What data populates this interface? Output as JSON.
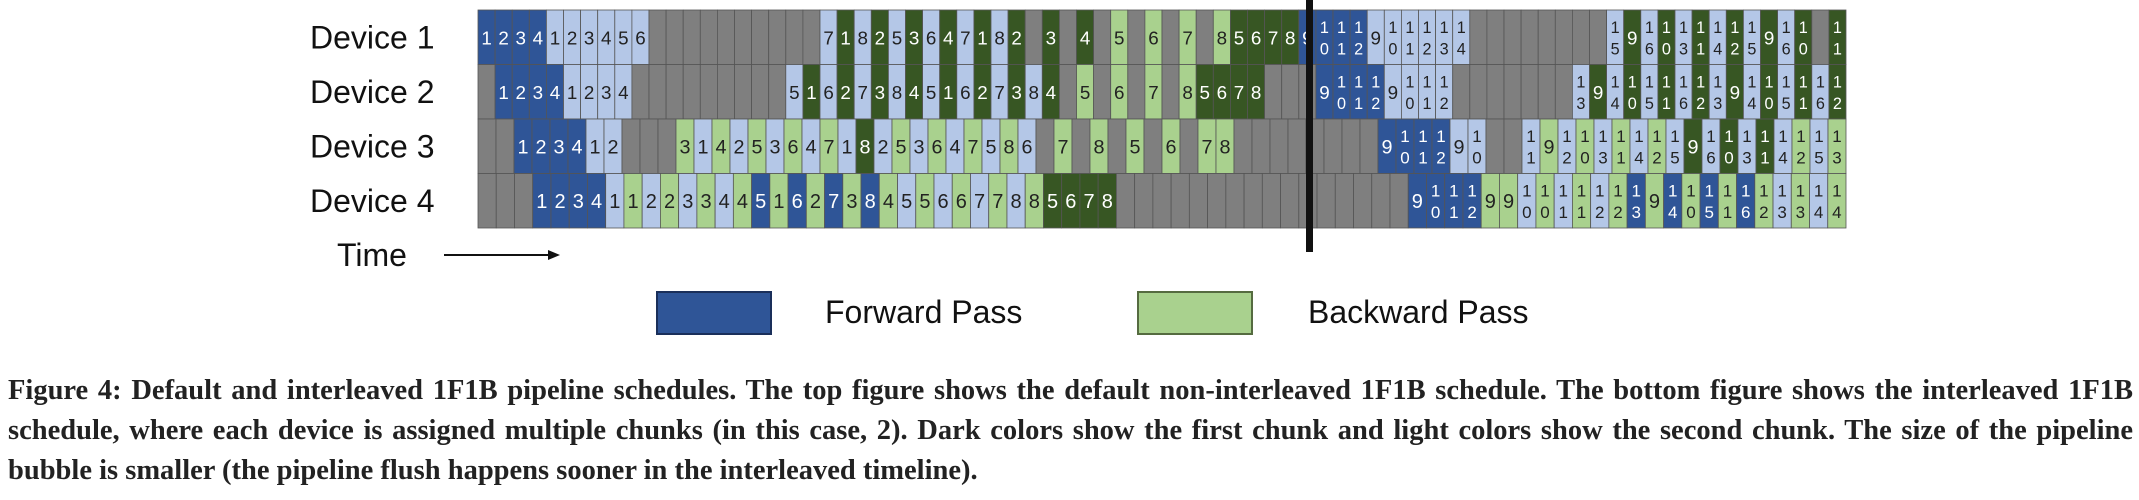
{
  "rows": [
    {
      "label": "Device 1",
      "cells": [
        [
          "fd",
          "1"
        ],
        [
          "fd",
          "2"
        ],
        [
          "fd",
          "3"
        ],
        [
          "fd",
          "4"
        ],
        [
          "fl",
          "1"
        ],
        [
          "fl",
          "2"
        ],
        [
          "fl",
          "3"
        ],
        [
          "fl",
          "4"
        ],
        [
          "fl",
          "5"
        ],
        [
          "fl",
          "6"
        ],
        [
          "g",
          ""
        ],
        [
          "g",
          ""
        ],
        [
          "g",
          ""
        ],
        [
          "g",
          ""
        ],
        [
          "g",
          ""
        ],
        [
          "g",
          ""
        ],
        [
          "g",
          ""
        ],
        [
          "g",
          ""
        ],
        [
          "g",
          ""
        ],
        [
          "g",
          ""
        ],
        [
          "fl",
          "7"
        ],
        [
          "bd",
          "1"
        ],
        [
          "fl",
          "8"
        ],
        [
          "bd",
          "2"
        ],
        [
          "fl",
          "5"
        ],
        [
          "bd",
          "3"
        ],
        [
          "fl",
          "6"
        ],
        [
          "bd",
          "4"
        ],
        [
          "fl",
          "7"
        ],
        [
          "bd",
          "1"
        ],
        [
          "fl",
          "8"
        ],
        [
          "bd",
          "2"
        ],
        [
          "g",
          ""
        ],
        [
          "bd",
          "3"
        ],
        [
          "g",
          ""
        ],
        [
          "bd",
          "4"
        ],
        [
          "g",
          ""
        ],
        [
          "bl",
          "5"
        ],
        [
          "g",
          ""
        ],
        [
          "bl",
          "6"
        ],
        [
          "g",
          ""
        ],
        [
          "bl",
          "7"
        ],
        [
          "g",
          ""
        ],
        [
          "bl",
          "8"
        ],
        [
          "bd",
          "5"
        ],
        [
          "bd",
          "6"
        ],
        [
          "bd",
          "7"
        ],
        [
          "bd",
          "8"
        ],
        [
          "fd",
          "9"
        ],
        [
          "fd",
          "10"
        ],
        [
          "fd",
          "11"
        ],
        [
          "fd",
          "12"
        ],
        [
          "fl",
          "9"
        ],
        [
          "fl",
          "10"
        ],
        [
          "fl",
          "11"
        ],
        [
          "fl",
          "12"
        ],
        [
          "fl",
          "13"
        ],
        [
          "fl",
          "14"
        ],
        [
          "g",
          ""
        ],
        [
          "g",
          ""
        ],
        [
          "g",
          ""
        ],
        [
          "g",
          ""
        ],
        [
          "g",
          ""
        ],
        [
          "g",
          ""
        ],
        [
          "g",
          ""
        ],
        [
          "g",
          ""
        ],
        [
          "fl",
          "15"
        ],
        [
          "bd",
          "9"
        ],
        [
          "fl",
          "16"
        ],
        [
          "bd",
          "10"
        ],
        [
          "fl",
          "13"
        ],
        [
          "bd",
          "11"
        ],
        [
          "fl",
          "14"
        ],
        [
          "bd",
          "12"
        ],
        [
          "fl",
          "15"
        ],
        [
          "bd",
          "9"
        ],
        [
          "fl",
          "16"
        ],
        [
          "bd",
          "10"
        ],
        [
          "g",
          ""
        ],
        [
          "bd",
          "11"
        ]
      ]
    },
    {
      "label": "Device 2",
      "cells": [
        [
          "g",
          ""
        ],
        [
          "fd",
          "1"
        ],
        [
          "fd",
          "2"
        ],
        [
          "fd",
          "3"
        ],
        [
          "fd",
          "4"
        ],
        [
          "fl",
          "1"
        ],
        [
          "fl",
          "2"
        ],
        [
          "fl",
          "3"
        ],
        [
          "fl",
          "4"
        ],
        [
          "g",
          ""
        ],
        [
          "g",
          ""
        ],
        [
          "g",
          ""
        ],
        [
          "g",
          ""
        ],
        [
          "g",
          ""
        ],
        [
          "g",
          ""
        ],
        [
          "g",
          ""
        ],
        [
          "g",
          ""
        ],
        [
          "g",
          ""
        ],
        [
          "fl",
          "5"
        ],
        [
          "bd",
          "1"
        ],
        [
          "fl",
          "6"
        ],
        [
          "bd",
          "2"
        ],
        [
          "fl",
          "7"
        ],
        [
          "bd",
          "3"
        ],
        [
          "fl",
          "8"
        ],
        [
          "bd",
          "4"
        ],
        [
          "fl",
          "5"
        ],
        [
          "bd",
          "1"
        ],
        [
          "fl",
          "6"
        ],
        [
          "bd",
          "2"
        ],
        [
          "fl",
          "7"
        ],
        [
          "bd",
          "3"
        ],
        [
          "fl",
          "8"
        ],
        [
          "bd",
          "4"
        ],
        [
          "g",
          ""
        ],
        [
          "bl",
          "5"
        ],
        [
          "g",
          ""
        ],
        [
          "bl",
          "6"
        ],
        [
          "g",
          ""
        ],
        [
          "bl",
          "7"
        ],
        [
          "g",
          ""
        ],
        [
          "bl",
          "8"
        ],
        [
          "bd",
          "5"
        ],
        [
          "bd",
          "6"
        ],
        [
          "bd",
          "7"
        ],
        [
          "bd",
          "8"
        ],
        [
          "g",
          ""
        ],
        [
          "g",
          ""
        ],
        [
          "g",
          ""
        ],
        [
          "fd",
          "9"
        ],
        [
          "fd",
          "10"
        ],
        [
          "fd",
          "11"
        ],
        [
          "fd",
          "12"
        ],
        [
          "fl",
          "9"
        ],
        [
          "fl",
          "10"
        ],
        [
          "fl",
          "11"
        ],
        [
          "fl",
          "12"
        ],
        [
          "g",
          ""
        ],
        [
          "g",
          ""
        ],
        [
          "g",
          ""
        ],
        [
          "g",
          ""
        ],
        [
          "g",
          ""
        ],
        [
          "g",
          ""
        ],
        [
          "g",
          ""
        ],
        [
          "fl",
          "13"
        ],
        [
          "bd",
          "9"
        ],
        [
          "fl",
          "14"
        ],
        [
          "bd",
          "10"
        ],
        [
          "fl",
          "15"
        ],
        [
          "bd",
          "11"
        ],
        [
          "fl",
          "16"
        ],
        [
          "bd",
          "12"
        ],
        [
          "fl",
          "13"
        ],
        [
          "bd",
          "9"
        ],
        [
          "fl",
          "14"
        ],
        [
          "bd",
          "10"
        ],
        [
          "fl",
          "15"
        ],
        [
          "bd",
          "11"
        ],
        [
          "fl",
          "16"
        ],
        [
          "bd",
          "12"
        ]
      ]
    },
    {
      "label": "Device 3",
      "cells": [
        [
          "g",
          ""
        ],
        [
          "g",
          ""
        ],
        [
          "fd",
          "1"
        ],
        [
          "fd",
          "2"
        ],
        [
          "fd",
          "3"
        ],
        [
          "fd",
          "4"
        ],
        [
          "fl",
          "1"
        ],
        [
          "fl",
          "2"
        ],
        [
          "g",
          ""
        ],
        [
          "g",
          ""
        ],
        [
          "g",
          ""
        ],
        [
          "bl",
          "3"
        ],
        [
          "fl",
          "1"
        ],
        [
          "bl",
          "4"
        ],
        [
          "fl",
          "2"
        ],
        [
          "bl",
          "5"
        ],
        [
          "fl",
          "3"
        ],
        [
          "bl",
          "6"
        ],
        [
          "fl",
          "4"
        ],
        [
          "bl",
          "7"
        ],
        [
          "fl",
          "1"
        ],
        [
          "bd",
          "8"
        ],
        [
          "fl",
          "2"
        ],
        [
          "bl",
          "5"
        ],
        [
          "fl",
          "3"
        ],
        [
          "bl",
          "6"
        ],
        [
          "fl",
          "4"
        ],
        [
          "bl",
          "7"
        ],
        [
          "fl",
          "5"
        ],
        [
          "bl",
          "8"
        ],
        [
          "fl",
          "6"
        ],
        [
          "g",
          ""
        ],
        [
          "bl",
          "7"
        ],
        [
          "g",
          ""
        ],
        [
          "bl",
          "8"
        ],
        [
          "g",
          ""
        ],
        [
          "bl",
          "5"
        ],
        [
          "g",
          ""
        ],
        [
          "bl",
          "6"
        ],
        [
          "g",
          ""
        ],
        [
          "bl",
          "7"
        ],
        [
          "bl",
          "8"
        ],
        [
          "g",
          ""
        ],
        [
          "g",
          ""
        ],
        [
          "g",
          ""
        ],
        [
          "g",
          ""
        ],
        [
          "g",
          ""
        ],
        [
          "g",
          ""
        ],
        [
          "g",
          ""
        ],
        [
          "g",
          ""
        ],
        [
          "fd",
          "9"
        ],
        [
          "fd",
          "10"
        ],
        [
          "fd",
          "11"
        ],
        [
          "fd",
          "12"
        ],
        [
          "fl",
          "9"
        ],
        [
          "fl",
          "10"
        ],
        [
          "g",
          ""
        ],
        [
          "g",
          ""
        ],
        [
          "fl",
          "11"
        ],
        [
          "bl",
          "9"
        ],
        [
          "fl",
          "12"
        ],
        [
          "bl",
          "10"
        ],
        [
          "fl",
          "13"
        ],
        [
          "bl",
          "11"
        ],
        [
          "fl",
          "14"
        ],
        [
          "bl",
          "12"
        ],
        [
          "fl",
          "15"
        ],
        [
          "bd",
          "9"
        ],
        [
          "fl",
          "16"
        ],
        [
          "bd",
          "10"
        ],
        [
          "fl",
          "13"
        ],
        [
          "bd",
          "11"
        ],
        [
          "fl",
          "14"
        ],
        [
          "bl",
          "12"
        ],
        [
          "fl",
          "15"
        ],
        [
          "bl",
          "13"
        ]
      ]
    },
    {
      "label": "Device 4",
      "cells": [
        [
          "g",
          ""
        ],
        [
          "g",
          ""
        ],
        [
          "g",
          ""
        ],
        [
          "fd",
          "1"
        ],
        [
          "fd",
          "2"
        ],
        [
          "fd",
          "3"
        ],
        [
          "fd",
          "4"
        ],
        [
          "fl",
          "1"
        ],
        [
          "bl",
          "1"
        ],
        [
          "fl",
          "2"
        ],
        [
          "bl",
          "2"
        ],
        [
          "fl",
          "3"
        ],
        [
          "bl",
          "3"
        ],
        [
          "fl",
          "4"
        ],
        [
          "bl",
          "4"
        ],
        [
          "fd",
          "5"
        ],
        [
          "bl",
          "1"
        ],
        [
          "fd",
          "6"
        ],
        [
          "bl",
          "2"
        ],
        [
          "fd",
          "7"
        ],
        [
          "bl",
          "3"
        ],
        [
          "fd",
          "8"
        ],
        [
          "bl",
          "4"
        ],
        [
          "fl",
          "5"
        ],
        [
          "bl",
          "5"
        ],
        [
          "fl",
          "6"
        ],
        [
          "bl",
          "6"
        ],
        [
          "fl",
          "7"
        ],
        [
          "bl",
          "7"
        ],
        [
          "fl",
          "8"
        ],
        [
          "bl",
          "8"
        ],
        [
          "bd",
          "5"
        ],
        [
          "bd",
          "6"
        ],
        [
          "bd",
          "7"
        ],
        [
          "bd",
          "8"
        ],
        [
          "g",
          ""
        ],
        [
          "g",
          ""
        ],
        [
          "g",
          ""
        ],
        [
          "g",
          ""
        ],
        [
          "g",
          ""
        ],
        [
          "g",
          ""
        ],
        [
          "g",
          ""
        ],
        [
          "g",
          ""
        ],
        [
          "g",
          ""
        ],
        [
          "g",
          ""
        ],
        [
          "g",
          ""
        ],
        [
          "g",
          ""
        ],
        [
          "g",
          ""
        ],
        [
          "g",
          ""
        ],
        [
          "g",
          ""
        ],
        [
          "g",
          ""
        ],
        [
          "fd",
          "9"
        ],
        [
          "fd",
          "10"
        ],
        [
          "fd",
          "11"
        ],
        [
          "fd",
          "12"
        ],
        [
          "bl",
          "9"
        ],
        [
          "bl",
          "9"
        ],
        [
          "fl",
          "10"
        ],
        [
          "bl",
          "10"
        ],
        [
          "fl",
          "11"
        ],
        [
          "bl",
          "11"
        ],
        [
          "fl",
          "12"
        ],
        [
          "bl",
          "12"
        ],
        [
          "fd",
          "13"
        ],
        [
          "bl",
          "9"
        ],
        [
          "fd",
          "14"
        ],
        [
          "bl",
          "10"
        ],
        [
          "fd",
          "15"
        ],
        [
          "bl",
          "11"
        ],
        [
          "fd",
          "16"
        ],
        [
          "bl",
          "12"
        ],
        [
          "fl",
          "13"
        ],
        [
          "bl",
          "13"
        ],
        [
          "fl",
          "14"
        ],
        [
          "bl",
          "14"
        ]
      ]
    }
  ],
  "time_label": "Time",
  "legend": {
    "forward": "Forward Pass",
    "backward": "Backward Pass"
  },
  "caption": "Figure 4: Default and interleaved 1F1B pipeline schedules. The top figure shows the default non-interleaved 1F1B schedule. The bottom figure shows the interleaved 1F1B schedule, where each device is assigned multiple chunks (in this case, 2). Dark colors show the first chunk and light colors show the second chunk. The size of the pipeline bubble is smaller (the pipeline flush happens sooner in the interleaved timeline).",
  "colors": {
    "fd": "#2f5597",
    "fl": "#b4c7e7",
    "bd": "#375623",
    "bl": "#a9d18e",
    "g": "#7f7f7f"
  }
}
